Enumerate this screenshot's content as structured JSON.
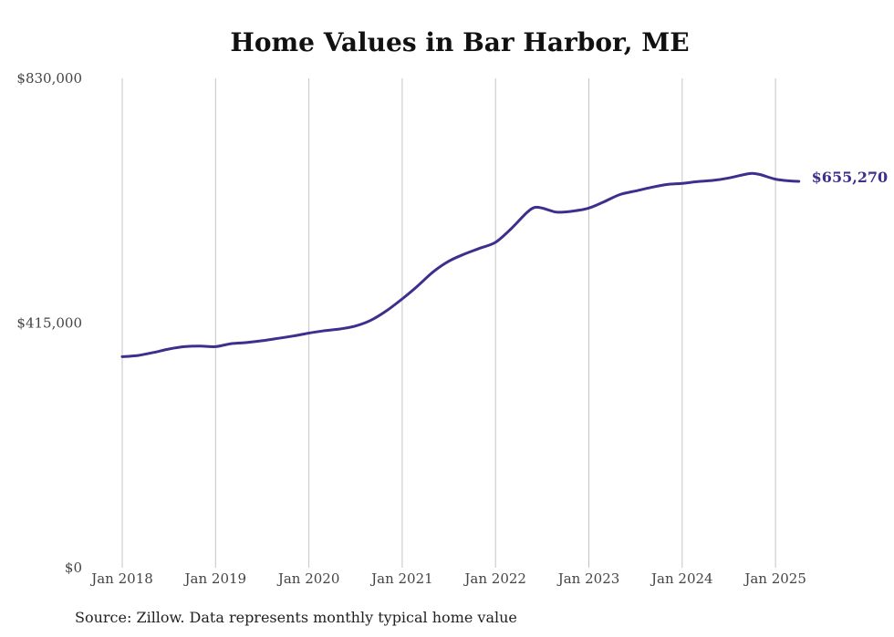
{
  "chart_data": {
    "type": "line",
    "title": "Home Values in Bar Harbor, ME",
    "source": "Source: Zillow. Data represents monthly typical home value",
    "xlabel": "",
    "ylabel": "",
    "ylim": [
      0,
      830000
    ],
    "y_ticks": [
      0,
      415000,
      830000
    ],
    "y_tick_labels": [
      "$0",
      "$415,000",
      "$830,000"
    ],
    "x_ticks": [
      "2018-01",
      "2019-01",
      "2020-01",
      "2021-01",
      "2022-01",
      "2023-01",
      "2024-01",
      "2025-01"
    ],
    "x_tick_labels": [
      "Jan 2018",
      "Jan 2019",
      "Jan 2020",
      "Jan 2021",
      "Jan 2022",
      "Jan 2023",
      "Jan 2024",
      "Jan 2025"
    ],
    "grid": "vertical",
    "line_color": "#3d2f8e",
    "end_label": "$655,270",
    "series": [
      {
        "x": [
          "2018-01",
          "2018-03",
          "2018-05",
          "2018-07",
          "2018-09",
          "2018-11",
          "2019-01",
          "2019-03",
          "2019-05",
          "2019-07",
          "2019-09",
          "2019-11",
          "2020-01",
          "2020-03",
          "2020-05",
          "2020-07",
          "2020-09",
          "2020-11",
          "2021-01",
          "2021-03",
          "2021-05",
          "2021-07",
          "2021-09",
          "2021-11",
          "2022-01",
          "2022-03",
          "2022-05",
          "2022-06",
          "2022-07",
          "2022-08",
          "2022-09",
          "2022-11",
          "2023-01",
          "2023-03",
          "2023-05",
          "2023-07",
          "2023-09",
          "2023-11",
          "2024-01",
          "2024-03",
          "2024-05",
          "2024-07",
          "2024-09",
          "2024-10",
          "2024-11",
          "2025-01",
          "2025-03",
          "2025-04"
        ],
        "y": [
          358000,
          360000,
          365000,
          371000,
          375000,
          376000,
          375000,
          380000,
          382000,
          385000,
          389000,
          393000,
          398000,
          402000,
          405000,
          410000,
          420000,
          436000,
          456000,
          478000,
          502000,
          520000,
          532000,
          542000,
          552000,
          575000,
          602000,
          611000,
          610000,
          606000,
          603000,
          605000,
          610000,
          621000,
          633000,
          639000,
          645000,
          650000,
          652000,
          655000,
          657000,
          661000,
          667000,
          669000,
          667000,
          659000,
          656000,
          655270
        ]
      }
    ]
  }
}
